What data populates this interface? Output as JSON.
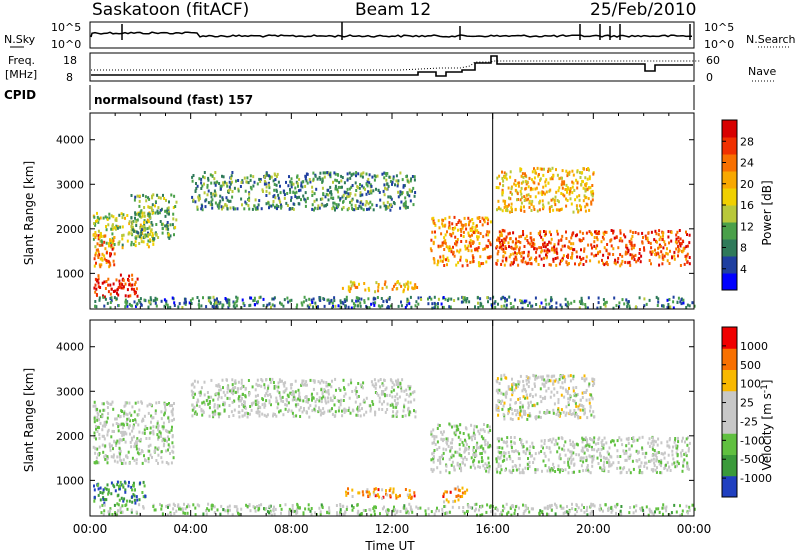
{
  "header": {
    "station": "Saskatoon (fitACF)",
    "beam": "Beam 12",
    "date": "25/Feb/2010"
  },
  "panels": {
    "nsky_label": "N.Sky",
    "nsky_ticks": [
      "10^5",
      "10^0"
    ],
    "nsearch_label": "N.Search",
    "nsearch_ticks": [
      "10^5",
      "10^0"
    ],
    "freq_label_1": "Freq.",
    "freq_label_2": "[MHz]",
    "freq_ticks": [
      "18",
      "8"
    ],
    "nave_label": "Nave",
    "nave_ticks": [
      "60",
      "0"
    ],
    "cpid_label": "CPID",
    "cpid_text": "normalsound (fast) 157"
  },
  "chart_data": [
    {
      "type": "heatmap",
      "name": "power",
      "ylabel": "Slant Range [km]",
      "yticks": [
        1000,
        2000,
        3000,
        4000
      ],
      "ylim": [
        200,
        4600
      ],
      "xlim": [
        0,
        24
      ],
      "colorbar": {
        "label": "Power [dB]",
        "ticks": [
          "28",
          "24",
          "20",
          "16",
          "12",
          "8",
          "4"
        ],
        "colors": [
          "#0000ff",
          "#1f3fa0",
          "#2f7a5a",
          "#4aa04a",
          "#b8c83a",
          "#f0d000",
          "#f8a800",
          "#f87000",
          "#f03000",
          "#d80000"
        ]
      },
      "regions": [
        {
          "t": [
            0.1,
            2.5
          ],
          "r": [
            1600,
            2400
          ],
          "v": 0.45
        },
        {
          "t": [
            0.1,
            1.0
          ],
          "r": [
            1100,
            1900
          ],
          "v": 0.75
        },
        {
          "t": [
            0.1,
            1.9
          ],
          "r": [
            500,
            1000
          ],
          "v": 0.9
        },
        {
          "t": [
            1.6,
            3.4
          ],
          "r": [
            1800,
            2800
          ],
          "v": 0.35
        },
        {
          "t": [
            4.0,
            12.9
          ],
          "r": [
            2450,
            3300
          ],
          "v": 0.3
        },
        {
          "t": [
            10.0,
            13.0
          ],
          "r": [
            620,
            850
          ],
          "v": 0.6
        },
        {
          "t": [
            13.5,
            15.9
          ],
          "r": [
            1200,
            2300
          ],
          "v": 0.7
        },
        {
          "t": [
            16.1,
            23.8
          ],
          "r": [
            1200,
            2000
          ],
          "v": 0.8
        },
        {
          "t": [
            16.1,
            20.0
          ],
          "r": [
            2400,
            3400
          ],
          "v": 0.6
        },
        {
          "t": [
            0.1,
            24.0
          ],
          "r": [
            250,
            500
          ],
          "v": 0.25
        }
      ]
    },
    {
      "type": "heatmap",
      "name": "velocity",
      "xlabel": "Time UT",
      "ylabel": "Slant Range [km]",
      "yticks": [
        1000,
        2000,
        3000,
        4000
      ],
      "ylim": [
        200,
        4600
      ],
      "xlim": [
        0,
        24
      ],
      "xticks": [
        "00:00",
        "04:00",
        "08:00",
        "12:00",
        "16:00",
        "20:00",
        "00:00"
      ],
      "colorbar": {
        "label": "Velocity [m s^-1]",
        "ticks": [
          "1000",
          "500",
          "100",
          "25",
          "-25",
          "-100",
          "-500",
          "-1000"
        ],
        "colors": [
          "#2040c0",
          "#3a9a3a",
          "#60c040",
          "#c8c8c8",
          "#c8c8c8",
          "#f8b800",
          "#f87000",
          "#f00000"
        ]
      },
      "regions": [
        {
          "t": [
            0.1,
            3.3
          ],
          "r": [
            1400,
            2800
          ],
          "v": 0.45
        },
        {
          "t": [
            0.1,
            2.2
          ],
          "r": [
            500,
            1000
          ],
          "v": 0.15
        },
        {
          "t": [
            4.0,
            12.9
          ],
          "r": [
            2450,
            3300
          ],
          "v": 0.45
        },
        {
          "t": [
            10.0,
            13.0
          ],
          "r": [
            620,
            850
          ],
          "v": 0.75
        },
        {
          "t": [
            13.5,
            15.9
          ],
          "r": [
            1200,
            2300
          ],
          "v": 0.45
        },
        {
          "t": [
            14.0,
            15.0
          ],
          "r": [
            550,
            900
          ],
          "v": 0.75
        },
        {
          "t": [
            16.1,
            23.8
          ],
          "r": [
            1200,
            2000
          ],
          "v": 0.45
        },
        {
          "t": [
            16.1,
            20.0
          ],
          "r": [
            2400,
            3400
          ],
          "v": 0.5
        },
        {
          "t": [
            0.1,
            24.0
          ],
          "r": [
            250,
            500
          ],
          "v": 0.4
        }
      ]
    }
  ]
}
